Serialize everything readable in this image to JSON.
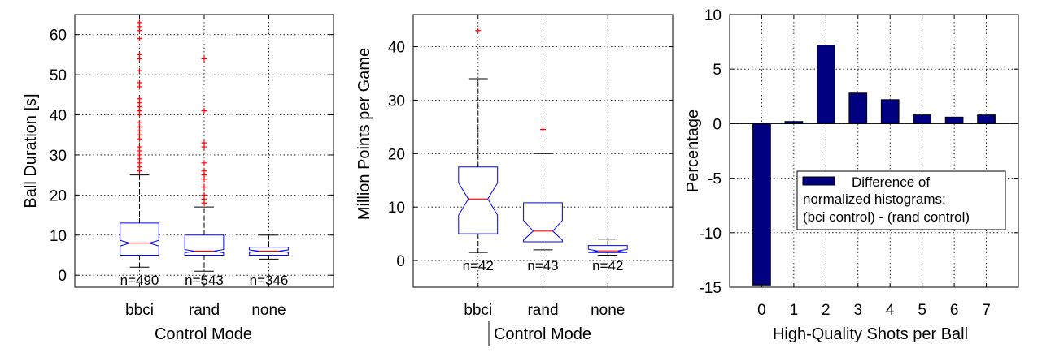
{
  "chart_data": [
    {
      "type": "box",
      "xlabel": "Control Mode",
      "ylabel": "Ball Duration [s]",
      "ylim": [
        -3,
        65
      ],
      "yticks": [
        0,
        10,
        20,
        30,
        40,
        50,
        60
      ],
      "categories": [
        "bbci",
        "rand",
        "none"
      ],
      "grid": true,
      "notched": true,
      "boxes": [
        {
          "name": "bbci",
          "q1": 5,
          "median": 8,
          "q3": 13,
          "notch_low": 7.3,
          "notch_high": 8.7,
          "whisker_low": 2,
          "whisker_high": 25,
          "outliers": [
            26,
            27,
            28,
            29,
            30,
            31,
            32,
            34,
            35,
            36,
            37,
            38,
            40,
            41,
            42,
            43,
            44,
            47,
            48,
            51,
            54,
            55,
            59,
            61,
            62,
            63
          ],
          "n_label": "n=490"
        },
        {
          "name": "rand",
          "q1": 5,
          "median": 6,
          "q3": 10,
          "notch_low": 5.6,
          "notch_high": 6.4,
          "whisker_low": 1,
          "whisker_high": 17,
          "outliers": [
            18,
            19,
            20,
            22,
            24,
            25,
            26,
            28,
            32,
            33,
            41,
            54
          ],
          "n_label": "n=543"
        },
        {
          "name": "none",
          "q1": 5,
          "median": 6,
          "q3": 7,
          "notch_low": 5.7,
          "notch_high": 6.3,
          "whisker_low": 4,
          "whisker_high": 10,
          "outliers": [],
          "n_label": "n=346"
        }
      ]
    },
    {
      "type": "box",
      "xlabel": "Control Mode",
      "ylabel": "Million Points per Game",
      "ylim": [
        -5,
        46
      ],
      "yticks": [
        0,
        10,
        20,
        30,
        40
      ],
      "categories": [
        "bbci",
        "rand",
        "none"
      ],
      "grid": true,
      "notched": true,
      "boxes": [
        {
          "name": "bbci",
          "q1": 5,
          "median": 11.5,
          "q3": 17.5,
          "notch_low": 8.5,
          "notch_high": 14.5,
          "whisker_low": 1.5,
          "whisker_high": 34,
          "outliers": [
            43
          ],
          "n_label": "n=42"
        },
        {
          "name": "rand",
          "q1": 3.5,
          "median": 5.5,
          "q3": 10.8,
          "notch_low": 3.8,
          "notch_high": 7.5,
          "whisker_low": 2,
          "whisker_high": 20,
          "outliers": [
            24.5
          ],
          "n_label": "n=43"
        },
        {
          "name": "none",
          "q1": 1.5,
          "median": 1.8,
          "q3": 2.8,
          "notch_low": 1.5,
          "notch_high": 2.1,
          "whisker_low": 1,
          "whisker_high": 4,
          "outliers": [],
          "n_label": "n=42"
        }
      ]
    },
    {
      "type": "bar",
      "xlabel": "High-Quality Shots per Ball",
      "ylabel": "Percentage",
      "ylim": [
        -15,
        10
      ],
      "yticks": [
        -15,
        -10,
        -5,
        0,
        5,
        10
      ],
      "categories": [
        "0",
        "1",
        "2",
        "3",
        "4",
        "5",
        "6",
        "7"
      ],
      "values": [
        -14.8,
        0.2,
        7.2,
        2.8,
        2.2,
        0.8,
        0.6,
        0.8
      ],
      "color": "#000080",
      "grid": true,
      "legend": {
        "placement": "lower-right",
        "lines": [
          "Difference of",
          "normalized histograms:",
          "(bci control) - (rand control)"
        ]
      }
    }
  ]
}
